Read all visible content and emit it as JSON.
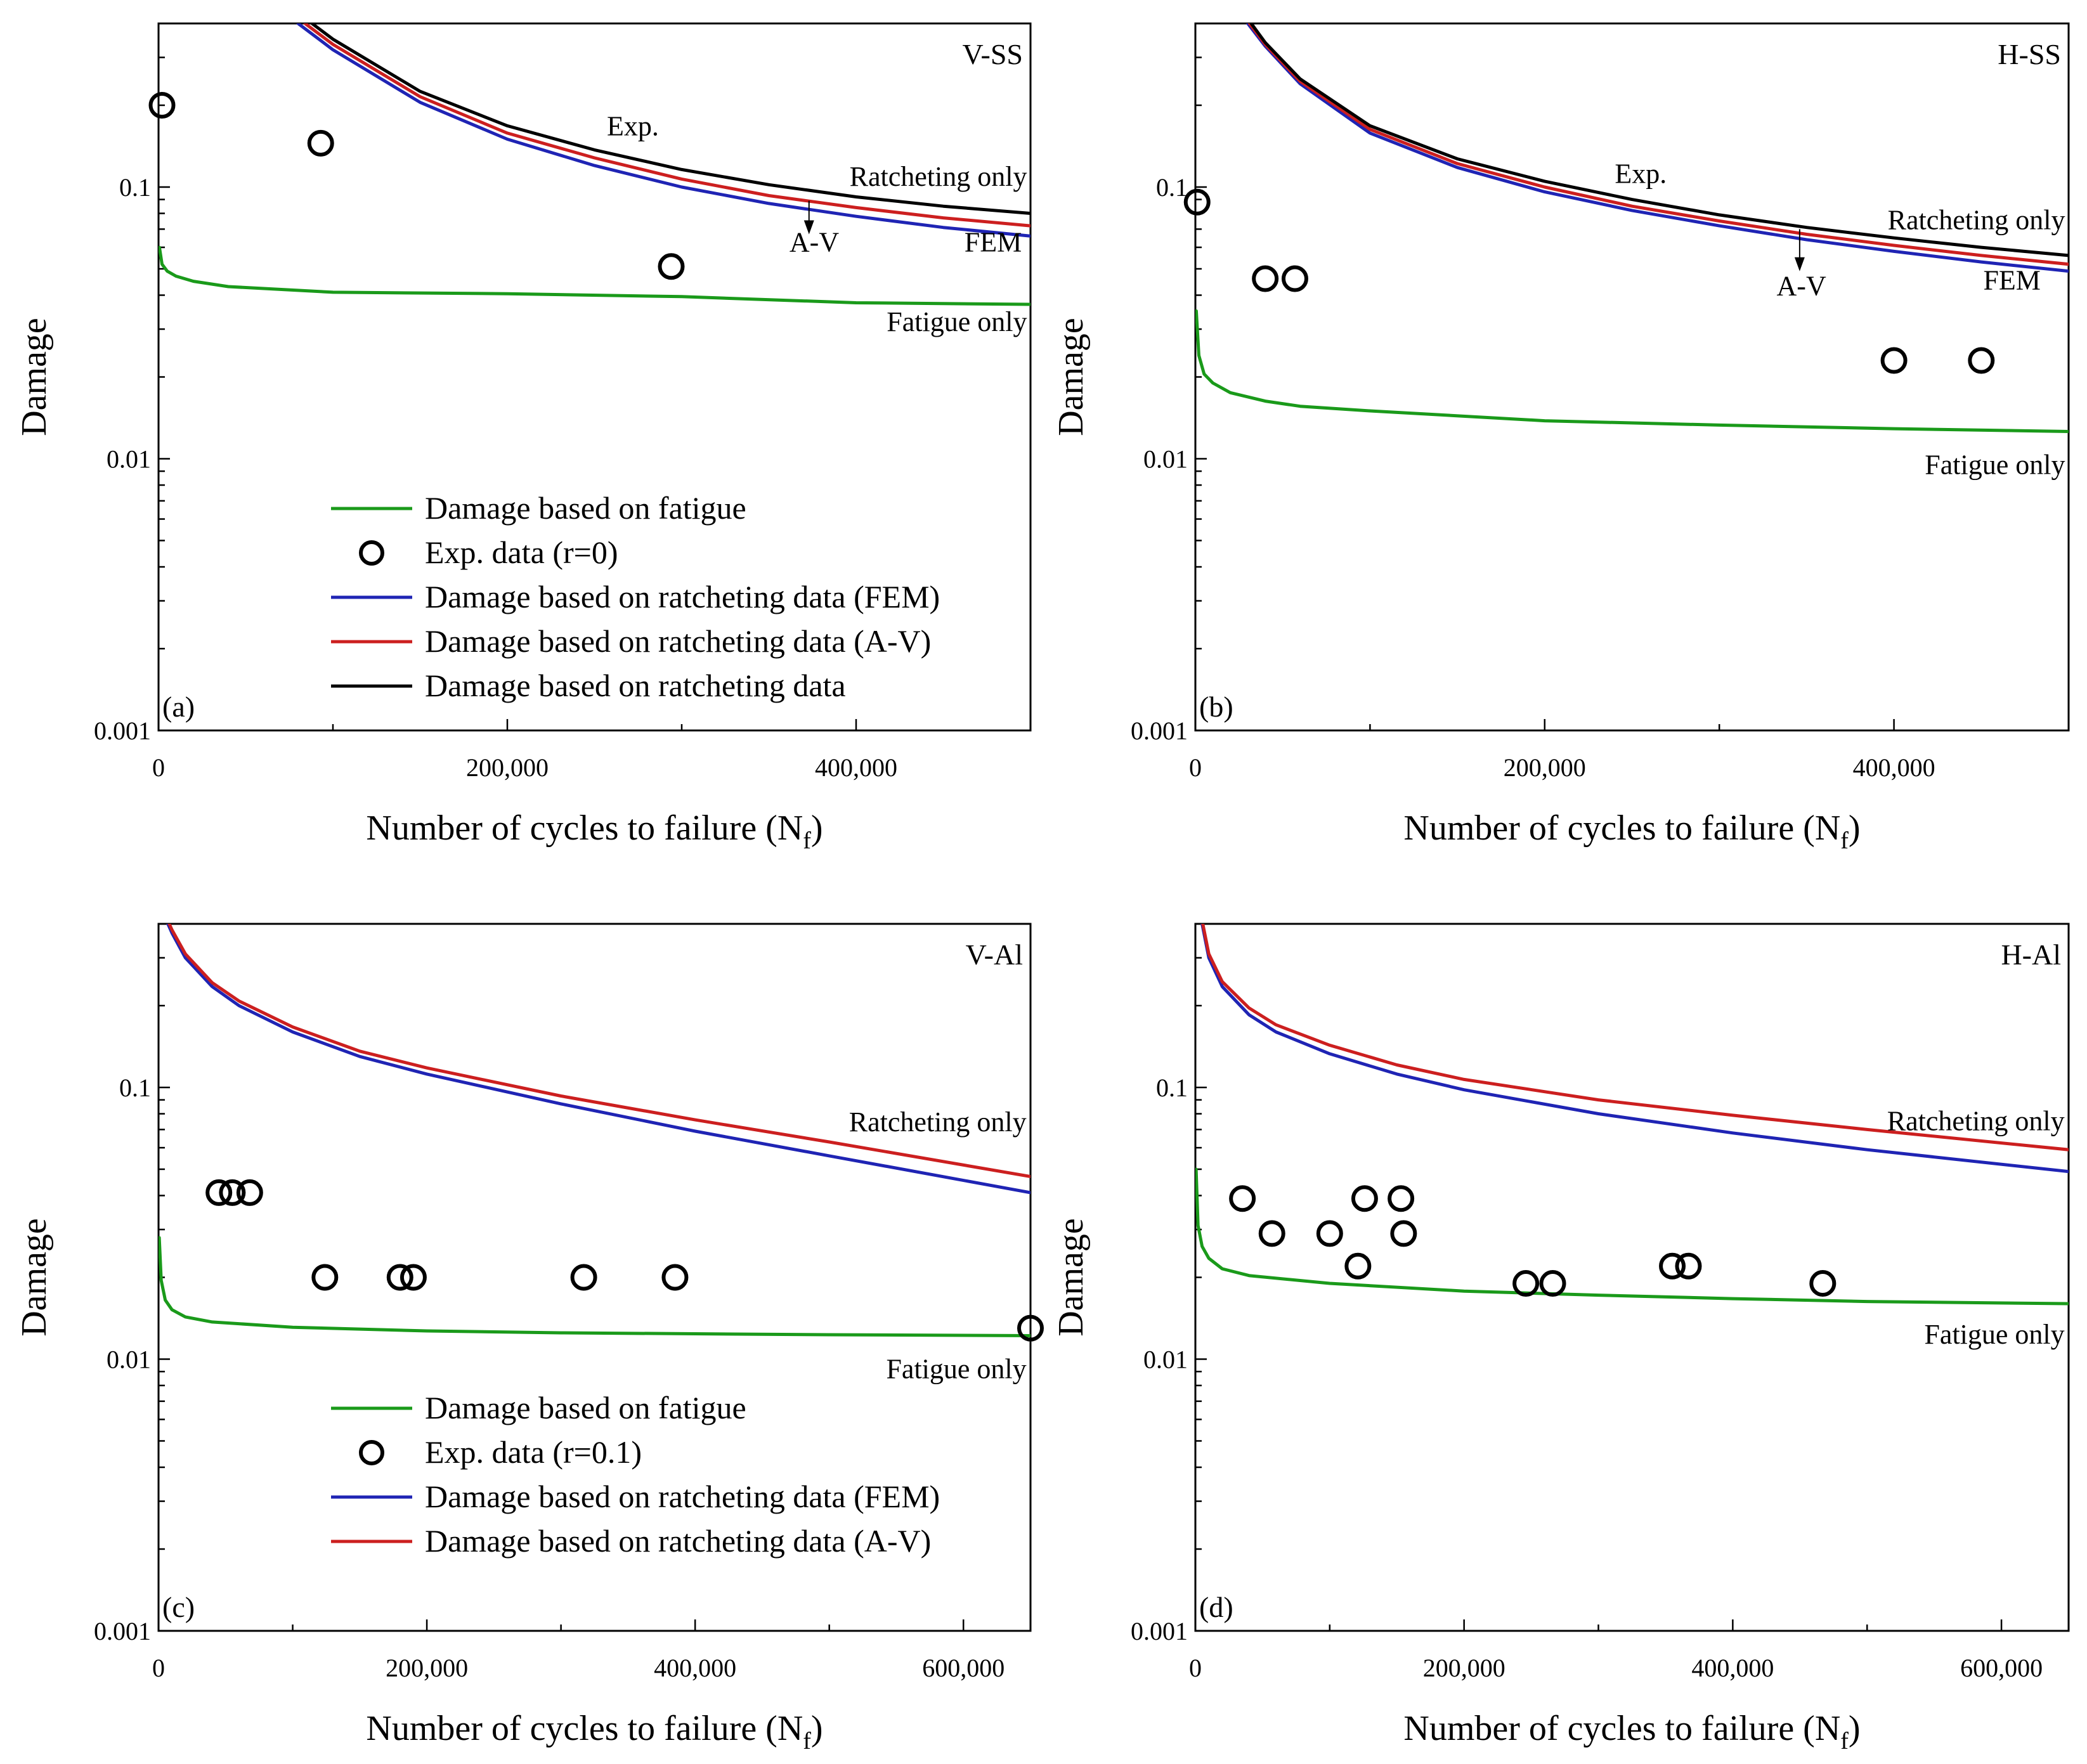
{
  "chart_data": [
    {
      "id": "a",
      "type": "line",
      "panel_label": "(a)",
      "corner_title": "V-SS",
      "xlabel": "Number of cycles to failure (N",
      "xlabel_sub": "f",
      "xlabel_close": ")",
      "ylabel": "Damage",
      "xlim": [
        0,
        500000
      ],
      "ylim": [
        0.001,
        0.4
      ],
      "yscale": "log",
      "x_ticks": [
        0,
        200000,
        400000
      ],
      "x_tick_labels": [
        "0",
        "200,000",
        "400,000"
      ],
      "y_ticks": [
        0.001,
        0.01,
        0.1
      ],
      "y_tick_labels": [
        "0.001",
        "0.01",
        "0.1"
      ],
      "series": [
        {
          "name": "Damage based on fatigue",
          "kind": "line",
          "color": "#1a9a1a",
          "x": [
            500,
            2000,
            5000,
            10000,
            20000,
            40000,
            100000,
            200000,
            300000,
            400000,
            500000
          ],
          "y": [
            0.06,
            0.052,
            0.049,
            0.047,
            0.045,
            0.043,
            0.041,
            0.0405,
            0.0395,
            0.0375,
            0.037
          ]
        },
        {
          "name": "Exp. data (r=0)",
          "kind": "scatter",
          "color": "#000000",
          "x": [
            2000,
            93000,
            294000
          ],
          "y": [
            0.2,
            0.145,
            0.051
          ]
        },
        {
          "name": "Damage based on ratcheting data (FEM)",
          "kind": "line",
          "color": "#1f24b4",
          "x": [
            80000,
            100000,
            150000,
            200000,
            250000,
            300000,
            350000,
            400000,
            450000,
            500000
          ],
          "y": [
            0.4,
            0.32,
            0.205,
            0.15,
            0.12,
            0.1,
            0.087,
            0.078,
            0.071,
            0.066
          ]
        },
        {
          "name": "Damage based on ratcheting data (A-V)",
          "kind": "line",
          "color": "#cc1f1f",
          "x": [
            84000,
            100000,
            150000,
            200000,
            250000,
            300000,
            350000,
            400000,
            450000,
            500000
          ],
          "y": [
            0.4,
            0.335,
            0.215,
            0.158,
            0.128,
            0.107,
            0.093,
            0.084,
            0.077,
            0.072
          ]
        },
        {
          "name": "Damage based on ratcheting data",
          "kind": "line",
          "color": "#000000",
          "x": [
            88000,
            100000,
            150000,
            200000,
            250000,
            300000,
            350000,
            400000,
            450000,
            500000
          ],
          "y": [
            0.4,
            0.35,
            0.225,
            0.168,
            0.137,
            0.116,
            0.102,
            0.092,
            0.085,
            0.08
          ]
        }
      ],
      "legend": [
        {
          "label": "Damage based on fatigue",
          "kind": "line",
          "color": "#1a9a1a"
        },
        {
          "label": "Exp. data (r=0)",
          "kind": "marker",
          "color": "#000000"
        },
        {
          "label": "Damage based on ratcheting data (FEM)",
          "kind": "line",
          "color": "#1f24b4"
        },
        {
          "label": "Damage based on ratcheting data (A-V)",
          "kind": "line",
          "color": "#cc1f1f"
        },
        {
          "label": " Damage based on ratcheting data",
          "kind": "line",
          "color": "#000000"
        }
      ],
      "annotations": [
        {
          "text": "Exp.",
          "x": 272000,
          "y": 0.155,
          "anchor": "middle"
        },
        {
          "text": "Ratcheting only",
          "x": 498000,
          "y": 0.101,
          "anchor": "end"
        },
        {
          "text": "A-V",
          "x": 376000,
          "y": 0.058,
          "anchor": "middle"
        },
        {
          "text": "FEM",
          "x": 495000,
          "y": 0.058,
          "anchor": "end"
        },
        {
          "text": "Fatigue only",
          "x": 498000,
          "y": 0.0295,
          "anchor": "end"
        }
      ],
      "arrow": {
        "x": 373000,
        "y_from": 0.089,
        "y_to": 0.067
      }
    },
    {
      "id": "b",
      "type": "line",
      "panel_label": "(b)",
      "corner_title": "H-SS",
      "xlabel": "Number of cycles to failure (N",
      "xlabel_sub": "f",
      "xlabel_close": ")",
      "ylabel": "Damage",
      "xlim": [
        0,
        500000
      ],
      "ylim": [
        0.001,
        0.4
      ],
      "yscale": "log",
      "x_ticks": [
        0,
        200000,
        400000
      ],
      "x_tick_labels": [
        "0",
        "200,000",
        "400,000"
      ],
      "y_ticks": [
        0.001,
        0.01,
        0.1
      ],
      "y_tick_labels": [
        "0.001",
        "0.01",
        "0.1"
      ],
      "series": [
        {
          "name": "Damage based on fatigue",
          "kind": "line",
          "color": "#1a9a1a",
          "x": [
            500,
            2000,
            5000,
            10000,
            20000,
            40000,
            60000,
            100000,
            200000,
            300000,
            400000,
            500000
          ],
          "y": [
            0.035,
            0.024,
            0.0205,
            0.019,
            0.0175,
            0.0163,
            0.0156,
            0.015,
            0.0138,
            0.0133,
            0.0129,
            0.0126
          ]
        },
        {
          "name": "Exp. data",
          "kind": "scatter",
          "color": "#000000",
          "x": [
            1000,
            40000,
            57000,
            400000,
            450000
          ],
          "y": [
            0.088,
            0.046,
            0.046,
            0.023,
            0.023
          ]
        },
        {
          "name": "Damage based on ratcheting data (FEM)",
          "kind": "line",
          "color": "#1f24b4",
          "x": [
            30000,
            40000,
            60000,
            100000,
            150000,
            200000,
            250000,
            300000,
            350000,
            400000,
            450000,
            500000
          ],
          "y": [
            0.4,
            0.33,
            0.24,
            0.158,
            0.118,
            0.096,
            0.082,
            0.072,
            0.064,
            0.058,
            0.053,
            0.049
          ]
        },
        {
          "name": "Damage based on ratcheting data (A-V)",
          "kind": "line",
          "color": "#cc1f1f",
          "x": [
            31000,
            40000,
            60000,
            100000,
            150000,
            200000,
            250000,
            300000,
            350000,
            400000,
            450000,
            500000
          ],
          "y": [
            0.4,
            0.335,
            0.245,
            0.163,
            0.122,
            0.1,
            0.085,
            0.075,
            0.067,
            0.061,
            0.056,
            0.052
          ]
        },
        {
          "name": "Damage based on ratcheting data",
          "kind": "line",
          "color": "#000000",
          "x": [
            32000,
            40000,
            60000,
            100000,
            150000,
            200000,
            250000,
            300000,
            350000,
            400000,
            450000,
            500000
          ],
          "y": [
            0.4,
            0.34,
            0.25,
            0.168,
            0.127,
            0.105,
            0.09,
            0.079,
            0.071,
            0.065,
            0.06,
            0.056
          ]
        }
      ],
      "legend": [],
      "annotations": [
        {
          "text": "Exp.",
          "x": 255000,
          "y": 0.1035,
          "anchor": "middle"
        },
        {
          "text": "Ratcheting only",
          "x": 498000,
          "y": 0.07,
          "anchor": "end"
        },
        {
          "text": "A-V",
          "x": 347000,
          "y": 0.04,
          "anchor": "middle"
        },
        {
          "text": "FEM",
          "x": 484000,
          "y": 0.042,
          "anchor": "end"
        },
        {
          "text": "Fatigue only",
          "x": 498000,
          "y": 0.0088,
          "anchor": "end"
        }
      ],
      "arrow": {
        "x": 346000,
        "y_from": 0.07,
        "y_to": 0.049
      }
    },
    {
      "id": "c",
      "type": "line",
      "panel_label": "(c)",
      "corner_title": "V-Al",
      "xlabel": "Number of cycles to failure (N",
      "xlabel_sub": "f",
      "xlabel_close": ")",
      "ylabel": "Damage",
      "xlim": [
        0,
        650000
      ],
      "ylim": [
        0.001,
        0.4
      ],
      "yscale": "log",
      "x_ticks": [
        0,
        200000,
        400000,
        600000
      ],
      "x_tick_labels": [
        "0",
        "200,000",
        "400,000",
        "600,000"
      ],
      "y_ticks": [
        0.001,
        0.01,
        0.1
      ],
      "y_tick_labels": [
        "0.001",
        "0.01",
        "0.1"
      ],
      "series": [
        {
          "name": "Damage based on fatigue",
          "kind": "line",
          "color": "#1a9a1a",
          "x": [
            500,
            2000,
            5000,
            10000,
            20000,
            40000,
            100000,
            200000,
            300000,
            400000,
            500000,
            650000
          ],
          "y": [
            0.028,
            0.0195,
            0.0165,
            0.0152,
            0.0143,
            0.0137,
            0.0131,
            0.0127,
            0.0125,
            0.0124,
            0.0123,
            0.0122
          ]
        },
        {
          "name": "Exp. data (r=0.1)",
          "kind": "scatter",
          "color": "#000000",
          "x": [
            45000,
            55000,
            68000,
            124000,
            180000,
            190000,
            317000,
            385000,
            650000
          ],
          "y": [
            0.041,
            0.041,
            0.041,
            0.02,
            0.02,
            0.02,
            0.02,
            0.02,
            0.013
          ]
        },
        {
          "name": "Damage based on ratcheting data (FEM)",
          "kind": "line",
          "color": "#1f24b4",
          "x": [
            7000,
            10000,
            20000,
            40000,
            60000,
            100000,
            150000,
            200000,
            300000,
            400000,
            500000,
            650000
          ],
          "y": [
            0.4,
            0.37,
            0.3,
            0.235,
            0.2,
            0.16,
            0.13,
            0.112,
            0.087,
            0.069,
            0.056,
            0.041
          ]
        },
        {
          "name": "Damage based on ratcheting data (A-V)",
          "kind": "line",
          "color": "#cc1f1f",
          "x": [
            8000,
            10000,
            20000,
            40000,
            60000,
            100000,
            150000,
            200000,
            300000,
            400000,
            500000,
            650000
          ],
          "y": [
            0.4,
            0.38,
            0.31,
            0.243,
            0.208,
            0.167,
            0.136,
            0.118,
            0.093,
            0.076,
            0.063,
            0.047
          ]
        }
      ],
      "legend": [
        {
          "label": "Damage based on fatigue",
          "kind": "line",
          "color": "#1a9a1a"
        },
        {
          "label": "Exp. data (r=0.1)",
          "kind": "marker",
          "color": "#000000"
        },
        {
          "label": "Damage based on ratcheting data (FEM)",
          "kind": "line",
          "color": "#1f24b4"
        },
        {
          "label": "Damage based on ratcheting data (A-V)",
          "kind": "line",
          "color": "#cc1f1f"
        }
      ],
      "annotations": [
        {
          "text": "Ratcheting only",
          "x": 647000,
          "y": 0.069,
          "anchor": "end"
        },
        {
          "text": "Fatigue only",
          "x": 647000,
          "y": 0.0085,
          "anchor": "end"
        }
      ],
      "arrow": null
    },
    {
      "id": "d",
      "type": "line",
      "panel_label": "(d)",
      "corner_title": "H-Al",
      "xlabel": "Number of cycles to failure (N",
      "xlabel_sub": "f",
      "xlabel_close": ")",
      "ylabel": "Damage",
      "xlim": [
        0,
        650000
      ],
      "ylim": [
        0.001,
        0.4
      ],
      "yscale": "log",
      "x_ticks": [
        0,
        200000,
        400000,
        600000
      ],
      "x_tick_labels": [
        "0",
        "200,000",
        "400,000",
        "600,000"
      ],
      "y_ticks": [
        0.001,
        0.01,
        0.1
      ],
      "y_tick_labels": [
        "0.001",
        "0.01",
        "0.1"
      ],
      "series": [
        {
          "name": "Damage based on fatigue",
          "kind": "line",
          "color": "#1a9a1a",
          "x": [
            500,
            2000,
            5000,
            10000,
            20000,
            40000,
            100000,
            200000,
            300000,
            400000,
            500000,
            650000
          ],
          "y": [
            0.05,
            0.031,
            0.026,
            0.0235,
            0.0215,
            0.0203,
            0.019,
            0.0178,
            0.0172,
            0.0167,
            0.0163,
            0.016
          ]
        },
        {
          "name": "Exp. data (r=0.1)",
          "kind": "scatter",
          "color": "#000000",
          "x": [
            35000,
            57000,
            100000,
            121000,
            126000,
            153000,
            155000,
            246000,
            266000,
            355000,
            367000,
            467000
          ],
          "y": [
            0.039,
            0.029,
            0.029,
            0.022,
            0.039,
            0.039,
            0.029,
            0.019,
            0.019,
            0.022,
            0.022,
            0.019
          ]
        },
        {
          "name": "Damage based on ratcheting data (FEM)",
          "kind": "line",
          "color": "#1f24b4",
          "x": [
            5000,
            10000,
            20000,
            40000,
            60000,
            100000,
            150000,
            200000,
            300000,
            400000,
            500000,
            650000
          ],
          "y": [
            0.4,
            0.3,
            0.235,
            0.185,
            0.16,
            0.133,
            0.112,
            0.098,
            0.08,
            0.068,
            0.059,
            0.049
          ]
        },
        {
          "name": "Damage based on ratcheting data (A-V)",
          "kind": "line",
          "color": "#cc1f1f",
          "x": [
            5500,
            10000,
            20000,
            40000,
            60000,
            100000,
            150000,
            200000,
            300000,
            400000,
            500000,
            650000
          ],
          "y": [
            0.4,
            0.31,
            0.245,
            0.196,
            0.17,
            0.143,
            0.121,
            0.107,
            0.09,
            0.079,
            0.07,
            0.059
          ]
        }
      ],
      "legend": [],
      "annotations": [
        {
          "text": "Ratcheting only",
          "x": 647000,
          "y": 0.0695,
          "anchor": "end"
        },
        {
          "text": "Fatigue only",
          "x": 647000,
          "y": 0.0114,
          "anchor": "end"
        }
      ],
      "arrow": null
    }
  ]
}
